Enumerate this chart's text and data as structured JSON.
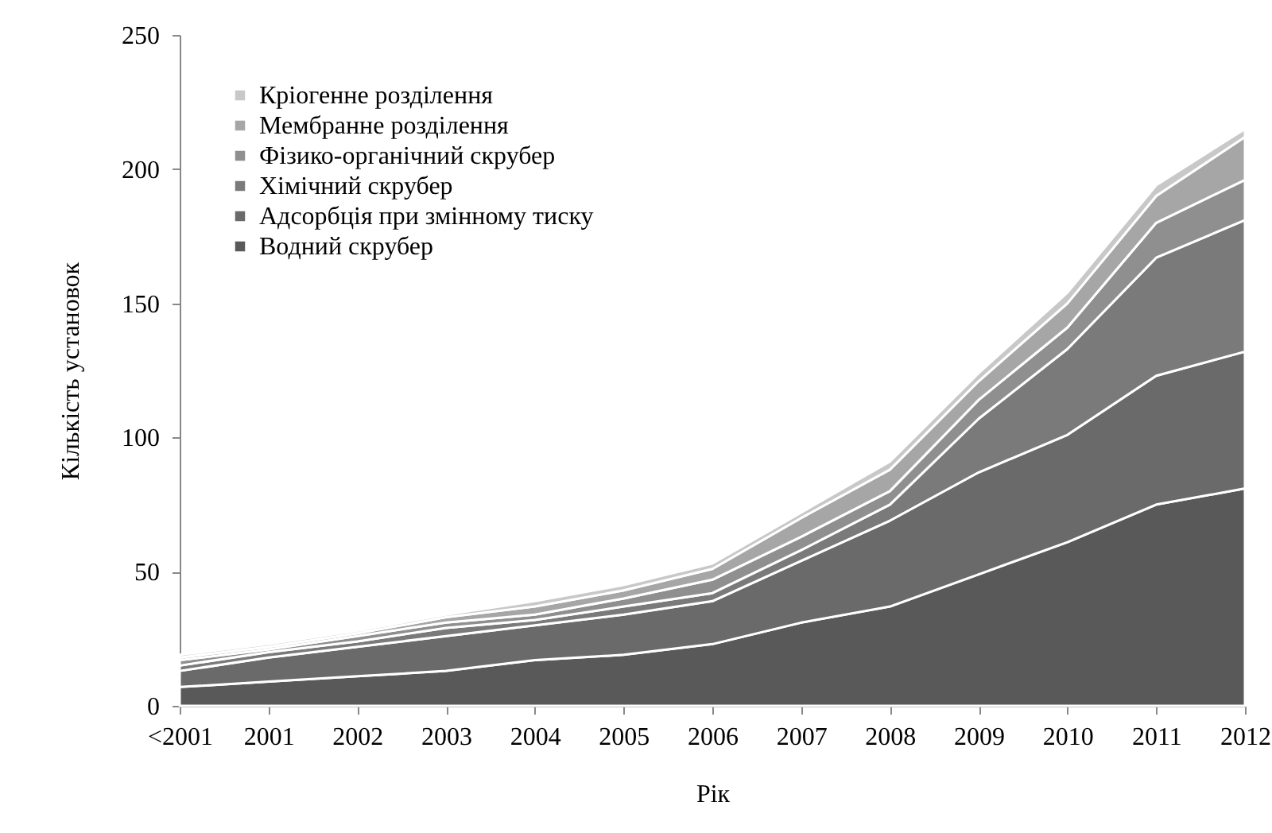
{
  "chart_data": {
    "type": "area",
    "stacked": true,
    "xlabel": "Рік",
    "ylabel": "Кількість установок",
    "categories": [
      "<2001",
      "2001",
      "2002",
      "2003",
      "2004",
      "2005",
      "2006",
      "2007",
      "2008",
      "2009",
      "2010",
      "2011",
      "2012"
    ],
    "series": [
      {
        "name": "Водний скрубер",
        "color": "#595959",
        "values": [
          7,
          9,
          11,
          13,
          17,
          19,
          23,
          31,
          37,
          49,
          61,
          75,
          81
        ]
      },
      {
        "name": "Адсорбція при змінному тиску",
        "color": "#6a6a6a",
        "values": [
          6,
          9,
          11,
          13,
          13,
          15,
          16,
          23,
          32,
          38,
          40,
          48,
          51
        ]
      },
      {
        "name": "Хімічний скрубер",
        "color": "#7a7a7a",
        "values": [
          2,
          2,
          2,
          3,
          2,
          3,
          3,
          4,
          6,
          20,
          32,
          44,
          49
        ]
      },
      {
        "name": "Фізико-органічний скрубер",
        "color": "#8f8f8f",
        "values": [
          2,
          1,
          2,
          2,
          2,
          3,
          5,
          5,
          5,
          7,
          8,
          13,
          15
        ]
      },
      {
        "name": "Мембранне розділення",
        "color": "#a6a6a6",
        "values": [
          1,
          1,
          1,
          2,
          3,
          3,
          4,
          7,
          8,
          7,
          9,
          10,
          16
        ]
      },
      {
        "name": "Кріогенне розділення",
        "color": "#c8c8c8",
        "values": [
          1,
          1,
          1,
          1,
          2,
          2,
          2,
          2,
          3,
          3,
          4,
          4,
          3
        ]
      }
    ],
    "ylim": [
      0,
      250
    ],
    "yticks": [
      0,
      50,
      100,
      150,
      200,
      250
    ],
    "grid": false,
    "legend": "top left"
  }
}
